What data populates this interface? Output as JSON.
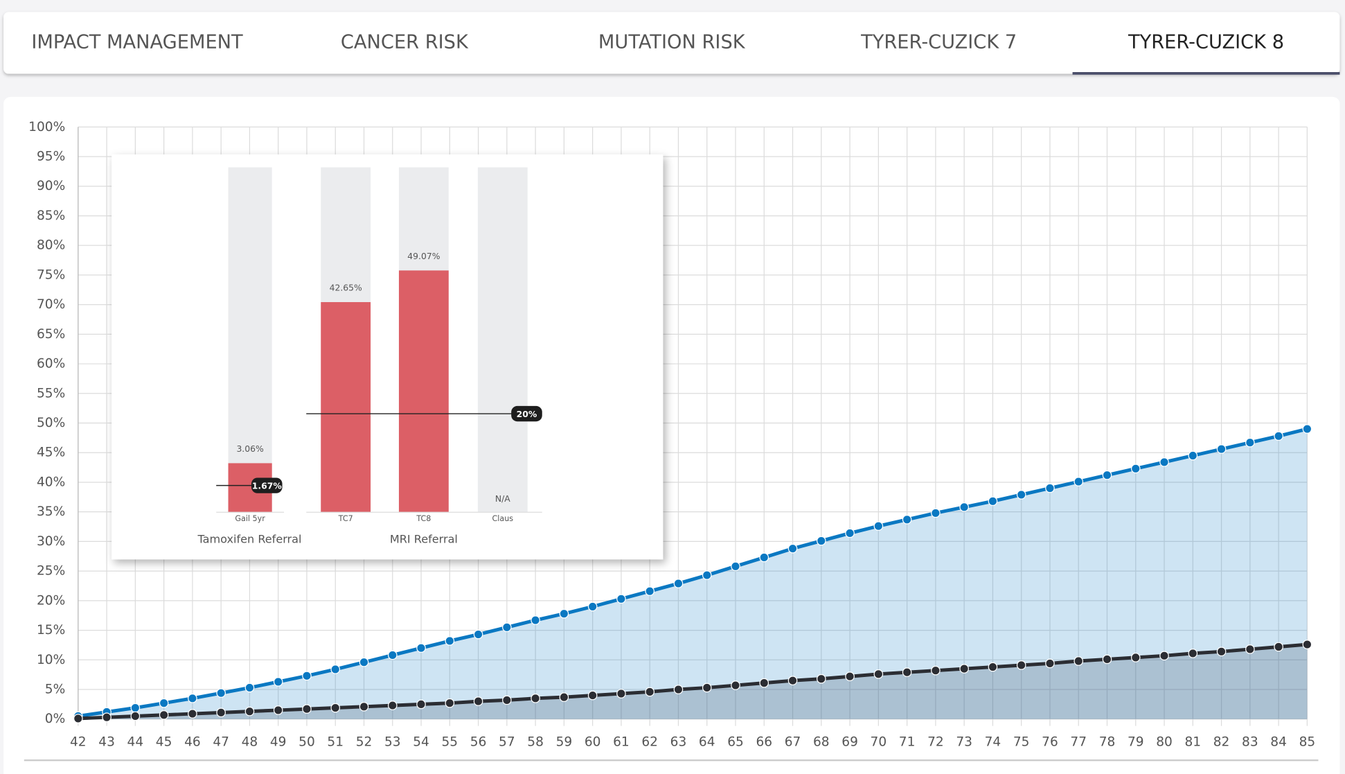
{
  "tabs": [
    "IMPACT MANAGEMENT",
    "CANCER RISK",
    "MUTATION RISK",
    "TYRER-CUZICK 7",
    "TYRER-CUZICK 8"
  ],
  "active_tab": 4,
  "chart_data": [
    {
      "type": "line",
      "x": [
        42,
        43,
        44,
        45,
        46,
        47,
        48,
        49,
        50,
        51,
        52,
        53,
        54,
        55,
        56,
        57,
        58,
        59,
        60,
        61,
        62,
        63,
        64,
        65,
        66,
        67,
        68,
        69,
        70,
        71,
        72,
        73,
        74,
        75,
        76,
        77,
        78,
        79,
        80,
        81,
        82,
        83,
        84,
        85
      ],
      "xlim": [
        42,
        85
      ],
      "xticks": [
        42,
        43,
        44,
        45,
        46,
        47,
        48,
        49,
        50,
        51,
        52,
        53,
        54,
        55,
        56,
        57,
        58,
        59,
        60,
        61,
        62,
        63,
        64,
        65,
        66,
        67,
        68,
        69,
        70,
        71,
        72,
        73,
        74,
        75,
        76,
        77,
        78,
        79,
        80,
        81,
        82,
        83,
        84,
        85
      ],
      "ylim": [
        0,
        100
      ],
      "yticks": [
        {
          "value": 0,
          "label": "0%"
        },
        {
          "value": 5,
          "label": "5%"
        },
        {
          "value": 10,
          "label": "10%"
        },
        {
          "value": 15,
          "label": "15%"
        },
        {
          "value": 20,
          "label": "20%"
        },
        {
          "value": 25,
          "label": "25%"
        },
        {
          "value": 30,
          "label": "30%"
        },
        {
          "value": 35,
          "label": "35%"
        },
        {
          "value": 40,
          "label": "40%"
        },
        {
          "value": 45,
          "label": "45%"
        },
        {
          "value": 50,
          "label": "50%"
        },
        {
          "value": 55,
          "label": "55%"
        },
        {
          "value": 60,
          "label": "60%"
        },
        {
          "value": 65,
          "label": "65%"
        },
        {
          "value": 70,
          "label": "70%"
        },
        {
          "value": 75,
          "label": "75%"
        },
        {
          "value": 80,
          "label": "80%"
        },
        {
          "value": 85,
          "label": "85%"
        },
        {
          "value": 90,
          "label": "90%"
        },
        {
          "value": 95,
          "label": "95%"
        },
        {
          "value": 100,
          "label": "100%"
        }
      ],
      "grid": true,
      "series": [
        {
          "color": "#0a78c2",
          "values": [
            0.5,
            1.2,
            1.9,
            2.7,
            3.5,
            4.4,
            5.3,
            6.3,
            7.3,
            8.4,
            9.6,
            10.8,
            12.0,
            13.2,
            14.3,
            15.5,
            16.7,
            17.8,
            19.0,
            20.3,
            21.6,
            22.9,
            24.3,
            25.8,
            27.3,
            28.8,
            30.1,
            31.4,
            32.6,
            33.7,
            34.8,
            35.8,
            36.8,
            37.9,
            39.0,
            40.1,
            41.2,
            42.3,
            43.4,
            44.5,
            45.6,
            46.7,
            47.8,
            49.0
          ]
        },
        {
          "color": "#2b2d33",
          "values": [
            0.1,
            0.3,
            0.5,
            0.7,
            0.9,
            1.1,
            1.3,
            1.5,
            1.7,
            1.9,
            2.1,
            2.3,
            2.5,
            2.7,
            3.0,
            3.2,
            3.5,
            3.7,
            4.0,
            4.3,
            4.6,
            5.0,
            5.3,
            5.7,
            6.1,
            6.5,
            6.8,
            7.2,
            7.6,
            7.9,
            8.2,
            8.5,
            8.8,
            9.1,
            9.4,
            9.8,
            10.1,
            10.4,
            10.7,
            11.1,
            11.4,
            11.8,
            12.2,
            12.6
          ]
        }
      ]
    },
    {
      "type": "bar",
      "color": "#dc5f66",
      "groups": [
        {
          "label": "Tamoxifen Referral",
          "categories": [
            "Gail 5yr"
          ],
          "values": [
            3.06
          ],
          "value_labels": [
            "3.06%"
          ],
          "ylim": [
            0,
            21.5
          ],
          "threshold": {
            "value": 1.67,
            "label": "1.67%"
          }
        },
        {
          "label": "MRI Referral",
          "categories": [
            "TC7",
            "TC8",
            "Claus"
          ],
          "values": [
            42.65,
            49.07,
            null
          ],
          "value_labels": [
            "42.65%",
            "49.07%",
            "N/A"
          ],
          "ylim": [
            0,
            70
          ],
          "threshold": {
            "value": 20,
            "label": "20%"
          }
        }
      ]
    }
  ]
}
